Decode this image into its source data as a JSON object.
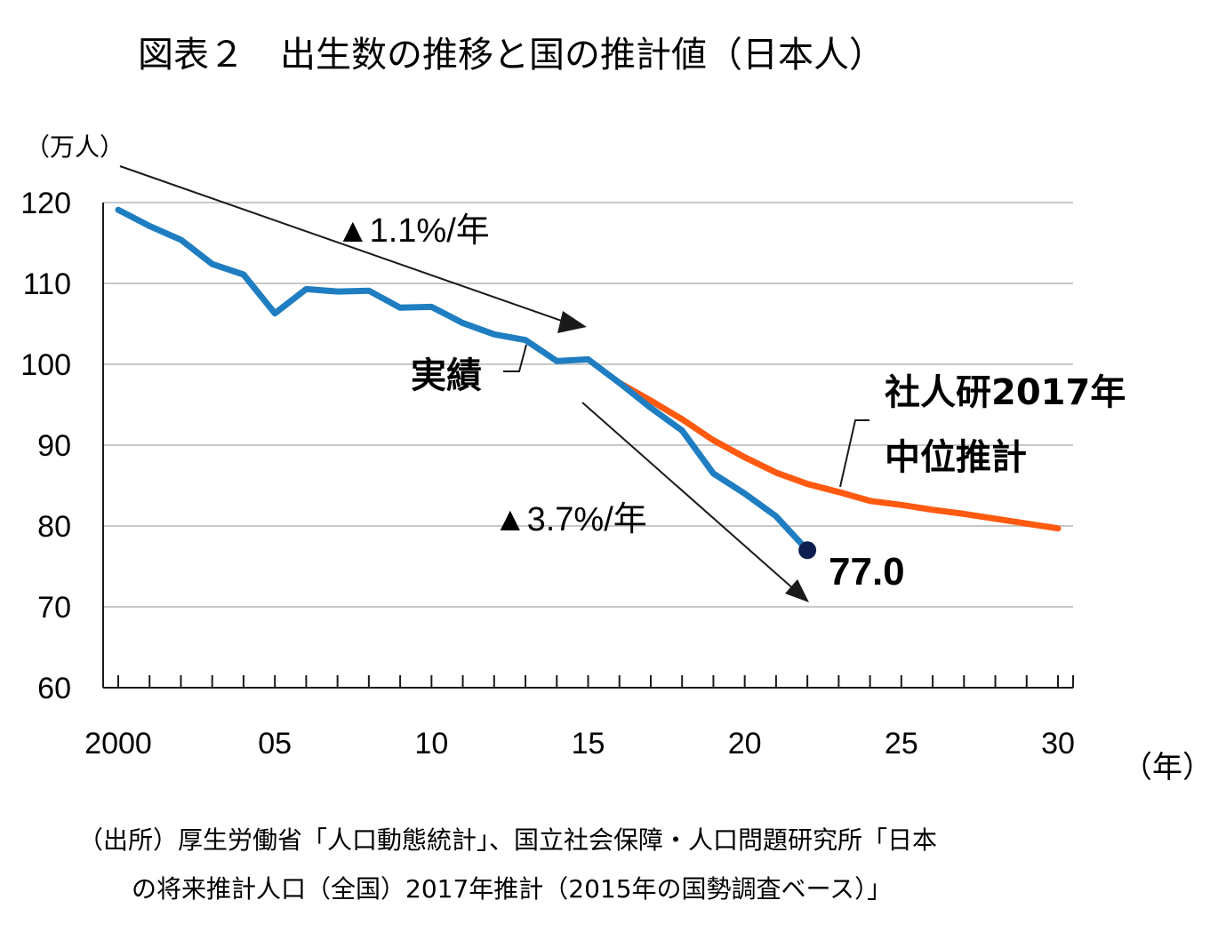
{
  "chart_data": {
    "type": "line",
    "title": "図表２　出生数の推移と国の推計値（日本人）",
    "ylabel": "（万人）",
    "xlabel": "（年）",
    "ylim": [
      60,
      120
    ],
    "xlim": [
      2000,
      2030
    ],
    "yticks": [
      "60",
      "70",
      "80",
      "90",
      "100",
      "110",
      "120"
    ],
    "xticks": [
      {
        "year": 2000,
        "label": "2000"
      },
      {
        "year": 2005,
        "label": "05"
      },
      {
        "year": 2010,
        "label": "10"
      },
      {
        "year": 2015,
        "label": "15"
      },
      {
        "year": 2020,
        "label": "20"
      },
      {
        "year": 2025,
        "label": "25"
      },
      {
        "year": 2030,
        "label": "30"
      }
    ],
    "series": [
      {
        "name": "実績",
        "color": "#1f7ec2",
        "x": [
          2000,
          2001,
          2002,
          2003,
          2004,
          2005,
          2006,
          2007,
          2008,
          2009,
          2010,
          2011,
          2012,
          2013,
          2014,
          2015,
          2016,
          2017,
          2018,
          2019,
          2020,
          2021,
          2022
        ],
        "values": [
          119.1,
          117.1,
          115.4,
          112.4,
          111.1,
          106.3,
          109.3,
          109.0,
          109.1,
          107.0,
          107.1,
          105.1,
          103.7,
          103.0,
          100.4,
          100.6,
          97.7,
          94.6,
          91.8,
          86.5,
          84.0,
          81.2,
          77.0
        ]
      },
      {
        "name": "社人研2017年中位推計",
        "color": "#ff5a10",
        "x": [
          2016,
          2017,
          2018,
          2019,
          2020,
          2021,
          2022,
          2023,
          2024,
          2025,
          2026,
          2027,
          2028,
          2029,
          2030
        ],
        "values": [
          97.7,
          95.5,
          93.2,
          90.6,
          88.5,
          86.6,
          85.2,
          84.2,
          83.1,
          82.6,
          82.0,
          81.5,
          80.9,
          80.3,
          79.7
        ]
      }
    ],
    "labels": {
      "actual": "実績",
      "projection_line1": "社人研2017年",
      "projection_line2": "中位推計",
      "last_value": "77.0",
      "trend1": "▲1.1%/年",
      "trend2": "▲3.7%/年"
    },
    "grid": true
  },
  "source": {
    "line1": "（出所）厚生労働省「人口動態統計」、国立社会保障・人口問題研究所「日本",
    "line2": "の将来推計人口（全国）2017年推計（2015年の国勢調査ベース）」"
  },
  "colors": {
    "actual": "#1f7ec2",
    "projection": "#ff5a10",
    "endpoint": "#0e1f4f",
    "grid": "#c8c8c8"
  }
}
